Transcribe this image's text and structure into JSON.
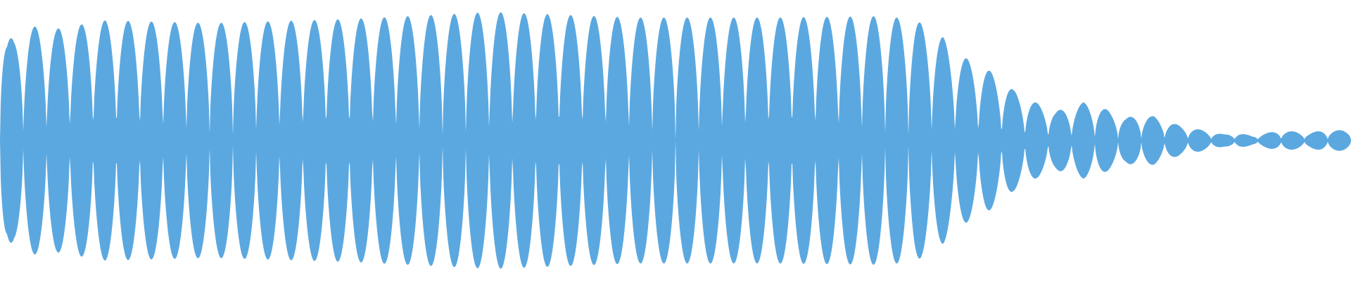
{
  "chart_data": {
    "type": "area",
    "title": "",
    "xlabel": "",
    "ylabel": "",
    "fill_color": "#5ba8e0",
    "background": "#ffffff",
    "grid": false,
    "symmetric": true,
    "ylim": [
      -1,
      1
    ],
    "xlim": [
      0,
      1920
    ],
    "description_kind": "audio-waveform-envelope",
    "series": [
      {
        "x": [
          6,
          17,
          38,
          53,
          73,
          98,
          122,
          148,
          175,
          201,
          228,
          254,
          280,
          307,
          333,
          360,
          386,
          413,
          440,
          466,
          493,
          519,
          546,
          572,
          599,
          625,
          656,
          682,
          709,
          736,
          763,
          789,
          816,
          843,
          869,
          896,
          923,
          949,
          976,
          1003,
          1030,
          1057,
          1083,
          1110,
          1137,
          1164,
          1191,
          1218,
          1245,
          1272,
          1291,
          1318,
          1345,
          1371,
          1398,
          1425,
          1452,
          1478,
          1505,
          1532,
          1558,
          1585,
          1612,
          1638,
          1665,
          1692,
          1718,
          1745,
          1772,
          1798,
          1825,
          1852,
          1878,
          1905,
          1918
        ],
        "values": [
          0.98,
          0.7,
          0.85,
          0.83,
          0.78,
          0.84,
          0.86,
          0.85,
          0.84,
          0.85,
          0.86,
          0.84,
          0.85,
          0.84,
          0.84,
          0.85,
          0.84,
          0.84,
          0.86,
          0.87,
          0.88,
          0.89,
          0.9,
          0.88,
          0.87,
          0.89,
          0.92,
          0.9,
          0.89,
          0.88,
          0.89,
          0.88,
          0.87,
          0.88,
          0.87,
          0.86,
          0.88,
          0.88,
          0.87,
          0.88,
          0.89,
          0.9,
          0.88,
          0.88,
          0.87,
          0.87,
          0.88,
          0.88,
          0.89,
          0.87,
          0.86,
          0.87,
          0.88,
          0.87,
          0.88,
          0.87,
          0.87,
          0.86,
          0.88,
          0.87,
          0.86,
          0.87,
          0.85,
          0.86,
          0.85,
          0.85,
          0.84,
          0.84,
          0.83,
          0.83,
          0.82,
          0.81,
          0.8,
          0.79,
          0.78
        ]
      }
    ],
    "envelope_x": [
      0,
      10,
      20,
      40,
      80,
      150,
      300,
      500,
      700,
      900,
      1100,
      1250,
      1300,
      1320,
      1340,
      1360,
      1380,
      1400,
      1420,
      1440,
      1460,
      1480,
      1500,
      1520,
      1540,
      1560,
      1580,
      1600,
      1620,
      1640,
      1660,
      1680,
      1700,
      1720,
      1740,
      1760,
      1780,
      1800,
      1820,
      1840,
      1860,
      1880,
      1900,
      1920
    ],
    "envelope_values": [
      0.99,
      0.75,
      0.72,
      0.82,
      0.8,
      0.86,
      0.84,
      0.87,
      0.92,
      0.88,
      0.88,
      0.89,
      0.87,
      0.8,
      0.74,
      0.62,
      0.57,
      0.52,
      0.45,
      0.36,
      0.3,
      0.25,
      0.21,
      0.23,
      0.27,
      0.25,
      0.2,
      0.16,
      0.18,
      0.17,
      0.13,
      0.1,
      0.08,
      0.06,
      0.04,
      0.05,
      0.03,
      0.05,
      0.07,
      0.06,
      0.05,
      0.07,
      0.07,
      0.07
    ],
    "cycles": 58
  }
}
